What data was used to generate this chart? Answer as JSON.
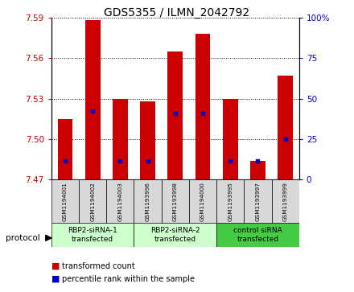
{
  "title": "GDS5355 / ILMN_2042792",
  "samples": [
    "GSM1194001",
    "GSM1194002",
    "GSM1194003",
    "GSM1193996",
    "GSM1193998",
    "GSM1194000",
    "GSM1193995",
    "GSM1193997",
    "GSM1193999"
  ],
  "bar_bottom": 7.47,
  "bar_tops": [
    7.515,
    7.588,
    7.53,
    7.528,
    7.565,
    7.578,
    7.53,
    7.484,
    7.547
  ],
  "percentile_values": [
    7.484,
    7.521,
    7.484,
    7.484,
    7.519,
    7.519,
    7.484,
    7.484,
    7.5
  ],
  "ylim_left": [
    7.47,
    7.59
  ],
  "ylim_right": [
    0,
    100
  ],
  "yticks_left": [
    7.47,
    7.5,
    7.53,
    7.56,
    7.59
  ],
  "yticks_right": [
    0,
    25,
    50,
    75,
    100
  ],
  "bar_color": "#cc0000",
  "dot_color": "#0000cc",
  "groups": [
    {
      "label": "RBP2-siRNA-1\ntransfected",
      "indices": [
        0,
        1,
        2
      ],
      "color": "#ccffcc"
    },
    {
      "label": "RBP2-siRNA-2\ntransfected",
      "indices": [
        3,
        4,
        5
      ],
      "color": "#ccffcc"
    },
    {
      "label": "control siRNA\ntransfected",
      "indices": [
        6,
        7,
        8
      ],
      "color": "#44cc44"
    }
  ],
  "legend_items": [
    {
      "label": "transformed count",
      "color": "#cc0000"
    },
    {
      "label": "percentile rank within the sample",
      "color": "#0000cc"
    }
  ],
  "protocol_label": "protocol",
  "tick_color_left": "#cc0000",
  "tick_color_right": "#0000cc",
  "sample_bg_color": "#d8d8d8",
  "bar_width": 0.55
}
